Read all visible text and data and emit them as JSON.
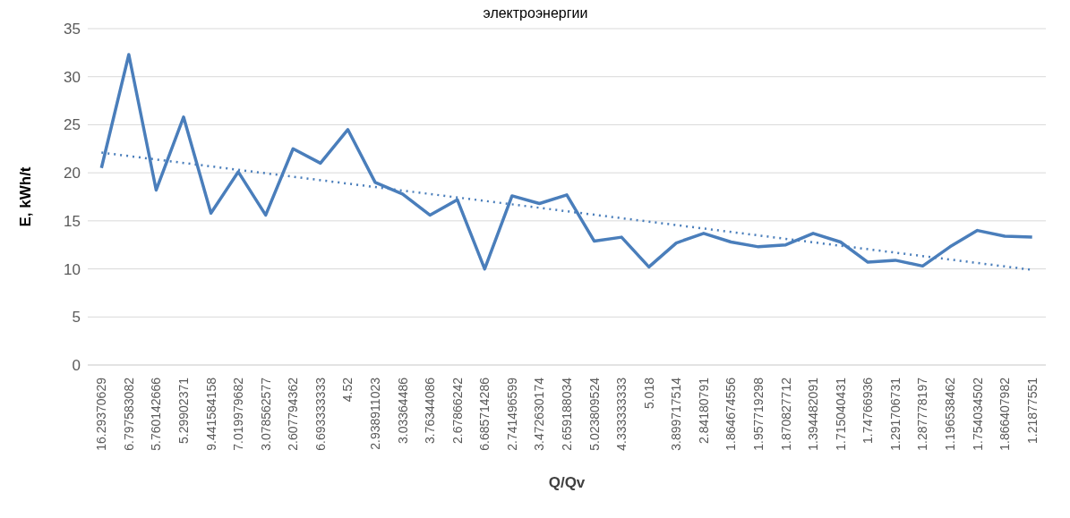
{
  "chart_data": {
    "type": "line",
    "title": "электроэнергии",
    "xlabel": "Q/Qv",
    "ylabel": "E, kWh/t",
    "categories": [
      "16.29370629",
      "6.797583082",
      "5.760142666",
      "5.29902371",
      "9.441584158",
      "7.019979682",
      "3.078562577",
      "2.607794362",
      "6.693333333",
      "4.52",
      "2.938911023",
      "3.03364486",
      "3.76344086",
      "2.67866242",
      "6.685714286",
      "2.741496599",
      "3.472630174",
      "2.659188034",
      "5.023809524",
      "4.333333333",
      "5.018",
      "3.899717514",
      "2.84180791",
      "1.864674556",
      "1.957719298",
      "1.870827712",
      "1.394482091",
      "1.715040431",
      "1.74766936",
      "1.291706731",
      "1.287778197",
      "1.196538462",
      "1.754034502",
      "1.866407982",
      "1.21877551"
    ],
    "series": [
      {
        "color": "#4a7ebb",
        "line_style": "solid",
        "values": [
          20.5,
          32.3,
          18.2,
          25.8,
          15.8,
          20.1,
          15.6,
          22.5,
          21.0,
          24.5,
          19.0,
          17.8,
          15.6,
          17.2,
          10.0,
          17.6,
          16.8,
          17.7,
          12.9,
          13.3,
          10.2,
          12.7,
          13.7,
          12.8,
          12.3,
          12.5,
          13.7,
          12.8,
          10.7,
          10.9,
          10.3,
          12.3,
          14.0,
          13.4,
          13.3
        ]
      },
      {
        "type": "line",
        "color": "#4a7ebb",
        "line_style": "dotted",
        "x": [
          "16.29370629",
          "1.21877551"
        ],
        "values": [
          22.1,
          9.9
        ]
      }
    ],
    "ylim": [
      0,
      35
    ],
    "yticks": [
      0,
      5,
      10,
      15,
      20,
      25,
      30,
      35
    ],
    "grid": "y",
    "marker": "none"
  }
}
